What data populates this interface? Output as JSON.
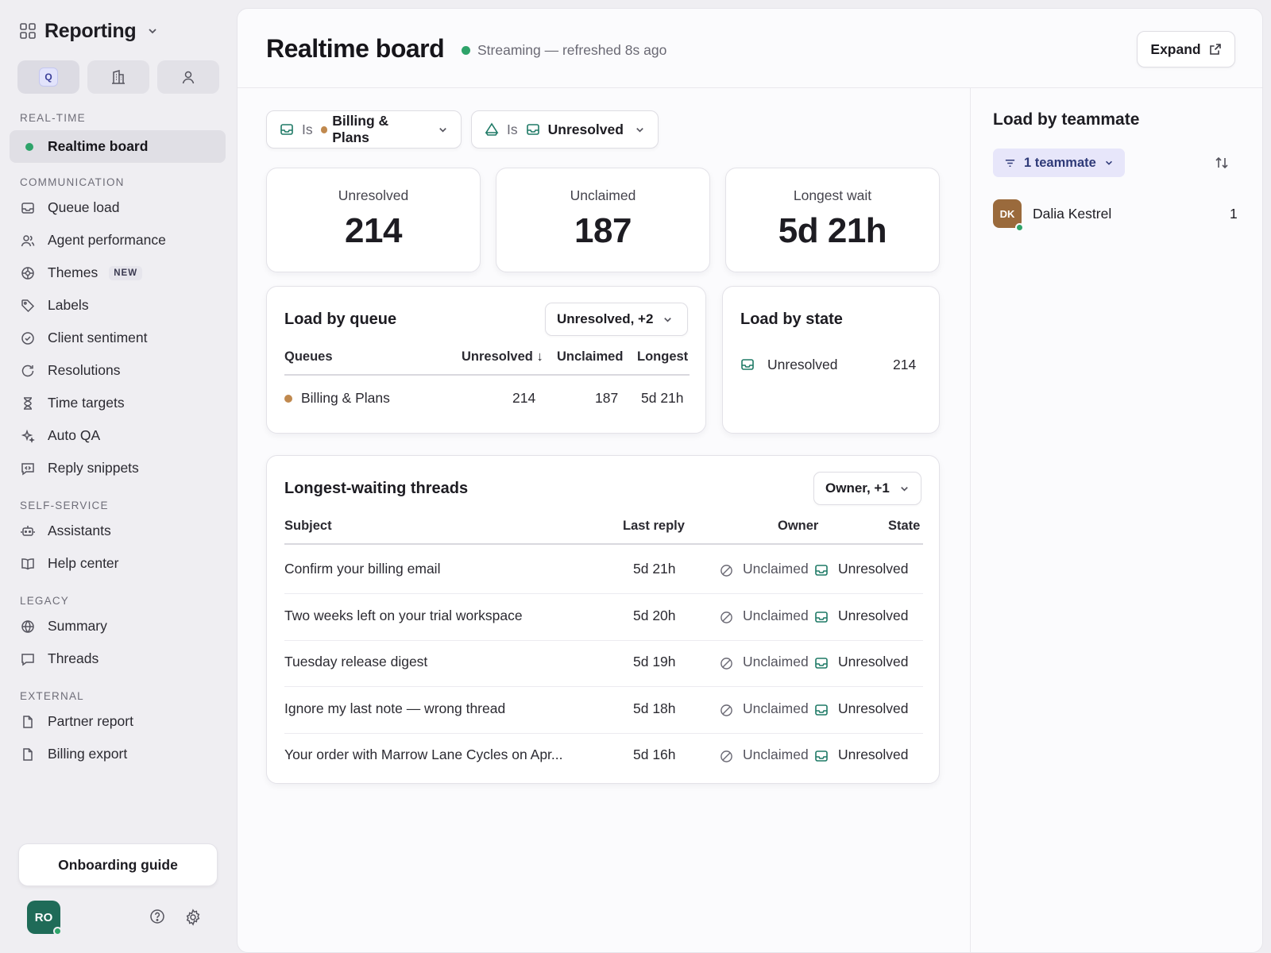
{
  "workspace": {
    "title": "Reporting"
  },
  "mode_tabs": [
    {
      "icon": "queue-icon",
      "label": "Q"
    },
    {
      "icon": "building-icon"
    },
    {
      "icon": "person-icon"
    }
  ],
  "sidebar": {
    "sections": [
      {
        "title": "REAL-TIME",
        "items": [
          {
            "label": "Realtime board",
            "icon": "status-dot",
            "active": true
          }
        ]
      },
      {
        "title": "COMMUNICATION",
        "items": [
          {
            "label": "Queue load",
            "icon": "inbox-icon"
          },
          {
            "label": "Agent performance",
            "icon": "people-icon"
          },
          {
            "label": "Themes",
            "icon": "theme-icon",
            "badge": "NEW"
          },
          {
            "label": "Labels",
            "icon": "tag-icon"
          },
          {
            "label": "Client sentiment",
            "icon": "check-circle-icon"
          },
          {
            "label": "Resolutions",
            "icon": "refresh-icon"
          },
          {
            "label": "Time targets",
            "icon": "hourglass-icon"
          },
          {
            "label": "Auto QA",
            "icon": "sparkle-icon"
          },
          {
            "label": "Reply snippets",
            "icon": "snippet-icon"
          }
        ]
      },
      {
        "title": "SELF-SERVICE",
        "items": [
          {
            "label": "Assistants",
            "icon": "robot-icon"
          },
          {
            "label": "Help center",
            "icon": "book-icon"
          }
        ]
      },
      {
        "title": "LEGACY",
        "items": [
          {
            "label": "Summary",
            "icon": "globe-icon"
          },
          {
            "label": "Threads",
            "icon": "chat-icon"
          }
        ]
      },
      {
        "title": "EXTERNAL",
        "items": [
          {
            "label": "Partner report",
            "icon": "file-icon"
          },
          {
            "label": "Billing export",
            "icon": "file-icon"
          }
        ]
      }
    ],
    "onboarding_label": "Onboarding guide",
    "user_initials": "RO"
  },
  "header": {
    "title": "Realtime board",
    "status": "Streaming — refreshed 8s ago",
    "expand_label": "Expand"
  },
  "filters": [
    {
      "prefix": "Is",
      "value": "Billing & Plans"
    },
    {
      "prefix": "Is",
      "value": "Unresolved"
    }
  ],
  "stats": [
    {
      "label": "Unresolved",
      "value": "214"
    },
    {
      "label": "Unclaimed",
      "value": "187"
    },
    {
      "label": "Longest wait",
      "value": "5d 21h"
    }
  ],
  "load_by_queue": {
    "title": "Load by queue",
    "dropdown": "Unresolved, +2",
    "columns": [
      "Queues",
      "Unresolved ↓",
      "Unclaimed",
      "Longest"
    ],
    "rows": [
      {
        "queue": "Billing & Plans",
        "unresolved": "214",
        "unclaimed": "187",
        "longest": "5d 21h"
      }
    ]
  },
  "load_by_state": {
    "title": "Load by state",
    "rows": [
      {
        "state": "Unresolved",
        "count": "214"
      }
    ]
  },
  "threads": {
    "title": "Longest-waiting threads",
    "dropdown": "Owner, +1",
    "columns": [
      "Subject",
      "Last reply",
      "Owner",
      "State"
    ],
    "rows": [
      {
        "subject": "Confirm your billing email",
        "last_reply": "5d 21h",
        "owner": "Unclaimed",
        "state": "Unresolved"
      },
      {
        "subject": "Two weeks left on your trial workspace",
        "last_reply": "5d 20h",
        "owner": "Unclaimed",
        "state": "Unresolved"
      },
      {
        "subject": "Tuesday release digest",
        "last_reply": "5d 19h",
        "owner": "Unclaimed",
        "state": "Unresolved"
      },
      {
        "subject": "Ignore my last note — wrong thread",
        "last_reply": "5d 18h",
        "owner": "Unclaimed",
        "state": "Unresolved"
      },
      {
        "subject": "Your order with Marrow Lane Cycles on Apr...",
        "last_reply": "5d 16h",
        "owner": "Unclaimed",
        "state": "Unresolved"
      }
    ]
  },
  "teammates": {
    "title": "Load by teammate",
    "filter_chip": "1 teammate",
    "rows": [
      {
        "initials": "DK",
        "name": "Dalia Kestrel",
        "count": "1"
      }
    ]
  },
  "colors": {
    "accent_green": "#2ea36a",
    "queue_dot": "#c0894e",
    "teal_icon": "#1f7a66"
  }
}
